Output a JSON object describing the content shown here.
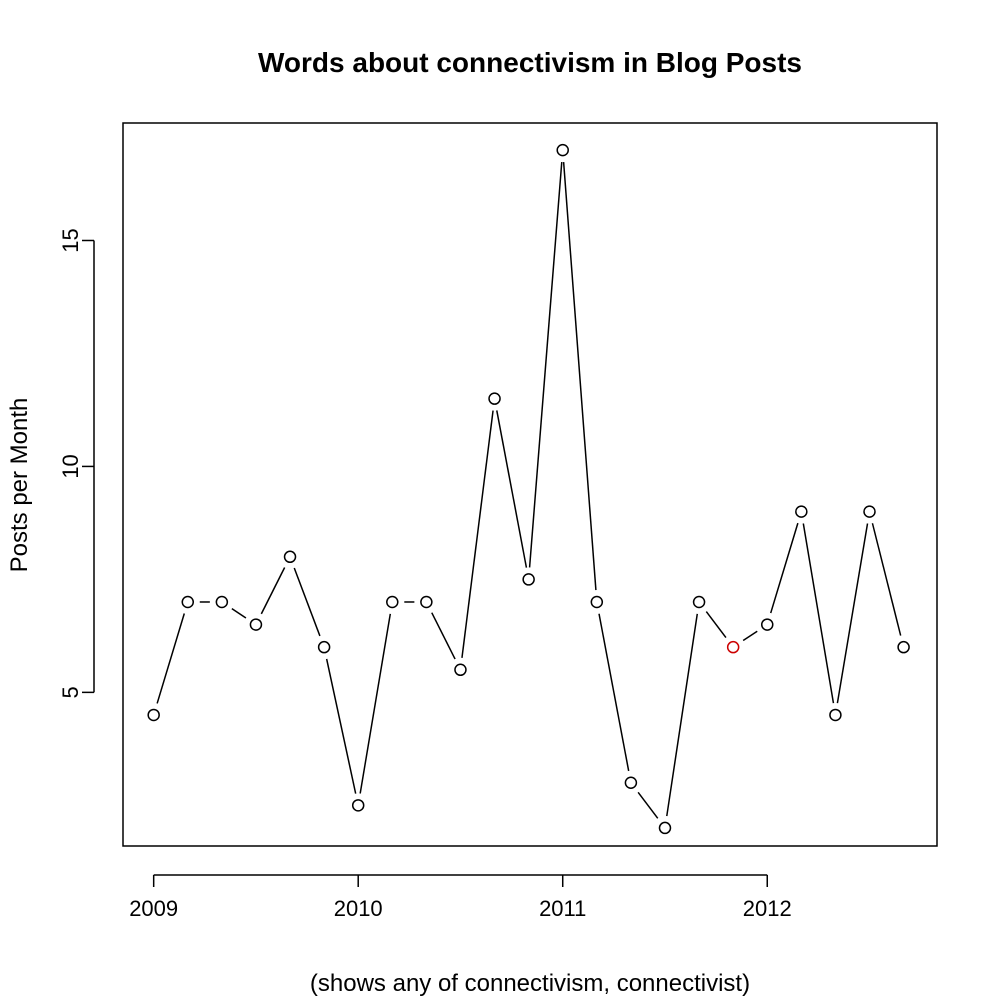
{
  "chart_data": {
    "type": "line",
    "title": "Words about connectivism in Blog Posts",
    "xlabel": "(shows any of connectivism, connectivist)",
    "ylabel": "Posts per Month",
    "x_ticks": [
      "2009",
      "2010",
      "2011",
      "2012"
    ],
    "y_ticks": [
      "5",
      "10",
      "15"
    ],
    "x": [
      "2009-01",
      "2009-03",
      "2009-05",
      "2009-07",
      "2009-09",
      "2009-11",
      "2010-01",
      "2010-03",
      "2010-05",
      "2010-07",
      "2010-09",
      "2010-11",
      "2011-01",
      "2011-03",
      "2011-05",
      "2011-07",
      "2011-09",
      "2011-11",
      "2012-01",
      "2012-03",
      "2012-05",
      "2012-07",
      "2012-09"
    ],
    "values": [
      4.5,
      7,
      7,
      6.5,
      8,
      6,
      2.5,
      7,
      7,
      5.5,
      11.5,
      7.5,
      17,
      7,
      3,
      2,
      7,
      6,
      6.5,
      9,
      4.5,
      9,
      6
    ],
    "highlighted_point_index": 17,
    "highlight_color": "#cc0000",
    "point_color": "#000000",
    "xlim": [
      2008.85,
      2012.83
    ],
    "ylim": [
      1.6,
      17.6
    ],
    "grid": false,
    "legend": "none"
  }
}
